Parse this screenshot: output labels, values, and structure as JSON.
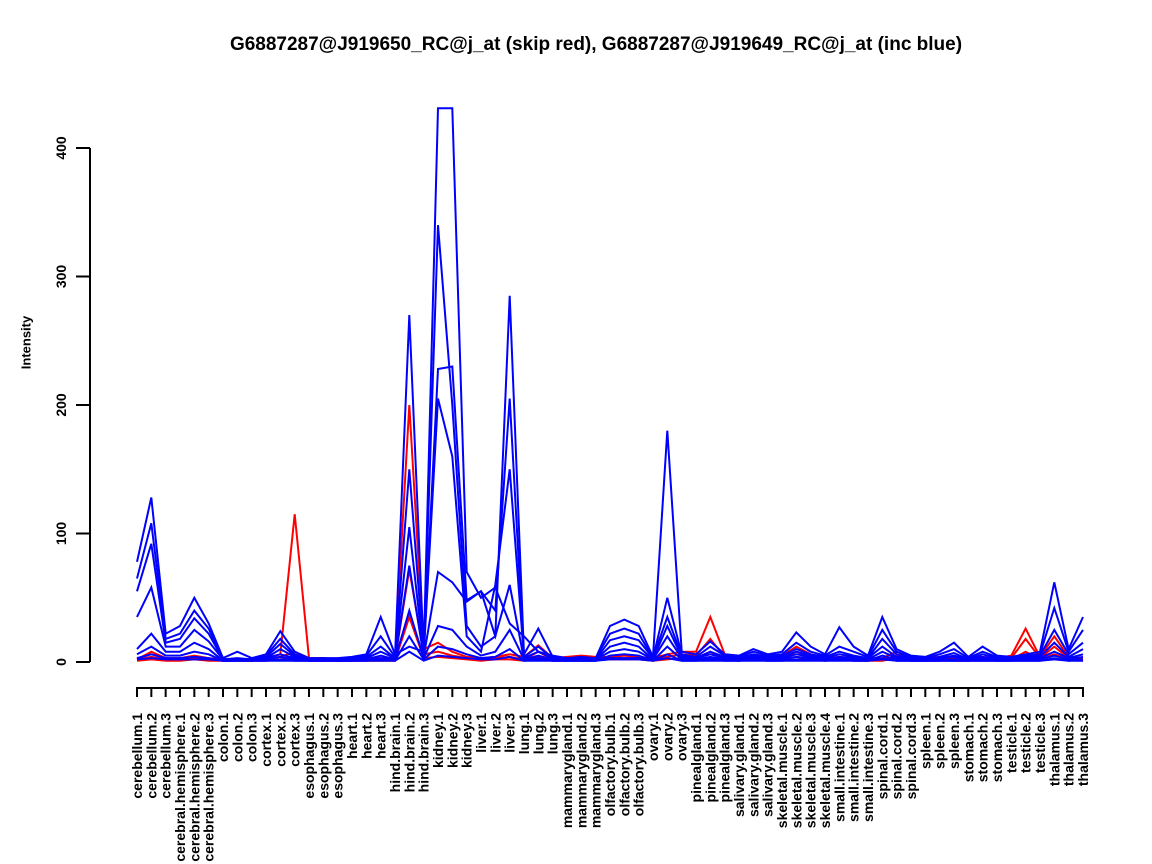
{
  "chart_data": {
    "type": "line",
    "title": "G6887287@J919650_RC@j_at (skip red), G6887287@J919649_RC@j_at (inc blue)",
    "xlabel": "",
    "ylabel": "Intensity",
    "y_ticks": [
      0,
      100,
      200,
      300,
      400
    ],
    "ylim": [
      0,
      435
    ],
    "grid": false,
    "legend_position": "none (legend encoded in title: skip=red, inc=blue)",
    "colors": {
      "skip_probe": "#ff0000",
      "inc_probe": "#0000ff",
      "axis": "#000000",
      "background": "#ffffff"
    },
    "categories": [
      "cerebellum.1",
      "cerebellum.2",
      "cerebellum.3",
      "cerebral.hemisphere.1",
      "cerebral.hemisphere.2",
      "cerebral.hemisphere.3",
      "colon.1",
      "colon.2",
      "colon.3",
      "cortex.1",
      "cortex.2",
      "cortex.3",
      "esophagus.1",
      "esophagus.2",
      "esophagus.3",
      "heart.1",
      "heart.2",
      "heart.3",
      "hind.brain.1",
      "hind.brain.2",
      "hind.brain.3",
      "kidney.1",
      "kidney.2",
      "kidney.3",
      "liver.1",
      "liver.2",
      "liver.3",
      "lung.1",
      "lung.2",
      "lung.3",
      "mammarygland.1",
      "mammarygland.2",
      "mammarygland.3",
      "olfactory.bulb.1",
      "olfactory.bulb.2",
      "olfactory.bulb.3",
      "ovary.1",
      "ovary.2",
      "ovary.3",
      "pinealgland.1",
      "pinealgland.2",
      "pinealgland.3",
      "salivary.gland.1",
      "salivary.gland.2",
      "salivary.gland.3",
      "skeletal.muscle.1",
      "skeletal.muscle.2",
      "skeletal.muscle.3",
      "skeletal.muscle.4",
      "small.intestine.1",
      "small.intestine.2",
      "small.intestine.3",
      "spinal.cord.1",
      "spinal.cord.2",
      "spinal.cord.3",
      "spleen.1",
      "spleen.2",
      "spleen.3",
      "stomach.1",
      "stomach.2",
      "stomach.3",
      "testicle.1",
      "testicle.2",
      "testicle.3",
      "thalamus.1",
      "thalamus.2",
      "thalamus.3"
    ],
    "series": [
      {
        "name": "G6887287@J919650_RC@j_at skip probe 1",
        "group": "skip",
        "color": "#ff0000",
        "values": [
          2,
          8,
          3,
          3,
          5,
          3,
          2,
          2,
          2,
          3,
          6,
          115,
          3,
          3,
          2,
          2,
          3,
          3,
          3,
          200,
          10,
          15,
          8,
          4,
          3,
          4,
          6,
          4,
          13,
          3,
          4,
          5,
          4,
          4,
          5,
          4,
          3,
          6,
          8,
          8,
          35,
          6,
          3,
          4,
          3,
          5,
          12,
          6,
          3,
          4,
          3,
          3,
          3,
          8,
          3,
          3,
          4,
          3,
          3,
          4,
          3,
          5,
          26,
          4,
          20,
          4,
          3
        ]
      },
      {
        "name": "G6887287@J919650_RC@j_at skip probe 2",
        "group": "skip",
        "color": "#ff0000",
        "values": [
          2,
          4,
          2,
          2,
          3,
          2,
          1,
          2,
          1,
          2,
          4,
          8,
          2,
          2,
          1,
          1,
          2,
          2,
          2,
          72,
          6,
          8,
          5,
          3,
          2,
          3,
          4,
          2,
          8,
          2,
          3,
          4,
          3,
          3,
          3,
          3,
          2,
          4,
          6,
          5,
          18,
          4,
          2,
          3,
          2,
          3,
          8,
          4,
          2,
          3,
          2,
          2,
          2,
          5,
          2,
          2,
          3,
          2,
          2,
          3,
          2,
          3,
          18,
          3,
          12,
          3,
          2
        ]
      },
      {
        "name": "G6887287@J919650_RC@j_at skip probe 3",
        "group": "skip",
        "color": "#ff0000",
        "values": [
          1,
          2,
          1,
          1,
          2,
          1,
          1,
          1,
          1,
          1,
          2,
          4,
          1,
          1,
          1,
          1,
          1,
          1,
          1,
          35,
          3,
          4,
          3,
          2,
          1,
          2,
          2,
          1,
          4,
          1,
          2,
          2,
          2,
          2,
          2,
          2,
          1,
          2,
          3,
          3,
          8,
          2,
          1,
          2,
          1,
          2,
          4,
          2,
          1,
          2,
          1,
          1,
          1,
          3,
          1,
          1,
          2,
          1,
          1,
          2,
          1,
          2,
          8,
          2,
          6,
          2,
          1
        ]
      },
      {
        "name": "G6887287@J919649_RC@j_at inc probe 1",
        "group": "inc",
        "color": "#0000ff",
        "values": [
          78,
          128,
          22,
          28,
          50,
          30,
          3,
          8,
          3,
          6,
          24,
          8,
          3,
          3,
          3,
          4,
          6,
          35,
          6,
          12,
          8,
          431,
          431,
          70,
          50,
          58,
          30,
          20,
          8,
          5,
          3,
          4,
          3,
          28,
          33,
          28,
          4,
          180,
          8,
          6,
          16,
          6,
          5,
          10,
          6,
          8,
          23,
          12,
          6,
          27,
          12,
          5,
          35,
          10,
          5,
          4,
          8,
          15,
          4,
          12,
          5,
          4,
          6,
          8,
          62,
          10,
          35
        ]
      },
      {
        "name": "G6887287@J919649_RC@j_at inc probe 2",
        "group": "inc",
        "color": "#0000ff",
        "values": [
          65,
          108,
          18,
          22,
          40,
          26,
          2,
          3,
          2,
          5,
          18,
          6,
          2,
          3,
          2,
          3,
          5,
          20,
          4,
          270,
          8,
          340,
          200,
          28,
          12,
          20,
          285,
          6,
          26,
          4,
          2,
          3,
          3,
          22,
          26,
          22,
          3,
          50,
          6,
          4,
          12,
          5,
          4,
          8,
          5,
          6,
          15,
          8,
          5,
          12,
          8,
          4,
          25,
          8,
          4,
          3,
          6,
          10,
          3,
          8,
          4,
          3,
          5,
          6,
          42,
          8,
          25
        ]
      },
      {
        "name": "G6887287@J919649_RC@j_at inc probe 3",
        "group": "inc",
        "color": "#0000ff",
        "values": [
          55,
          92,
          15,
          18,
          34,
          22,
          2,
          2,
          2,
          4,
          14,
          5,
          2,
          2,
          2,
          3,
          4,
          12,
          3,
          150,
          6,
          228,
          230,
          48,
          55,
          40,
          205,
          4,
          12,
          3,
          2,
          3,
          2,
          17,
          20,
          17,
          3,
          35,
          5,
          3,
          8,
          4,
          3,
          6,
          4,
          5,
          10,
          6,
          4,
          8,
          5,
          3,
          18,
          6,
          3,
          2,
          4,
          7,
          2,
          6,
          3,
          3,
          4,
          5,
          25,
          6,
          15
        ]
      },
      {
        "name": "G6887287@J919649_RC@j_at inc probe 4",
        "group": "inc",
        "color": "#0000ff",
        "values": [
          35,
          58,
          12,
          12,
          25,
          16,
          2,
          2,
          2,
          3,
          10,
          4,
          2,
          2,
          2,
          2,
          3,
          8,
          3,
          105,
          5,
          205,
          160,
          20,
          8,
          60,
          150,
          3,
          8,
          3,
          2,
          2,
          2,
          12,
          15,
          12,
          2,
          28,
          4,
          3,
          6,
          3,
          3,
          5,
          3,
          4,
          8,
          5,
          3,
          6,
          4,
          3,
          12,
          4,
          3,
          2,
          3,
          5,
          2,
          4,
          2,
          2,
          3,
          4,
          15,
          4,
          10
        ]
      },
      {
        "name": "G6887287@J919649_RC@j_at inc probe 5",
        "group": "inc",
        "color": "#0000ff",
        "values": [
          10,
          22,
          8,
          8,
          15,
          10,
          1,
          2,
          1,
          3,
          6,
          3,
          1,
          2,
          1,
          2,
          2,
          5,
          2,
          75,
          4,
          70,
          62,
          47,
          55,
          20,
          60,
          2,
          5,
          2,
          1,
          2,
          2,
          8,
          10,
          8,
          2,
          20,
          3,
          2,
          4,
          2,
          2,
          4,
          2,
          3,
          6,
          4,
          2,
          4,
          3,
          2,
          8,
          3,
          2,
          1,
          2,
          4,
          1,
          3,
          2,
          2,
          2,
          3,
          8,
          3,
          6
        ]
      },
      {
        "name": "G6887287@J919649_RC@j_at inc probe 6",
        "group": "inc",
        "color": "#0000ff",
        "values": [
          6,
          12,
          5,
          5,
          8,
          6,
          1,
          1,
          1,
          2,
          4,
          2,
          1,
          1,
          1,
          1,
          2,
          3,
          2,
          40,
          3,
          28,
          25,
          12,
          5,
          8,
          25,
          2,
          3,
          1,
          1,
          1,
          1,
          5,
          6,
          5,
          1,
          12,
          2,
          2,
          3,
          2,
          1,
          3,
          2,
          2,
          4,
          3,
          2,
          3,
          2,
          1,
          5,
          2,
          1,
          1,
          1,
          2,
          1,
          2,
          1,
          1,
          2,
          2,
          5,
          2,
          4
        ]
      },
      {
        "name": "G6887287@J919649_RC@j_at inc probe 7",
        "group": "inc",
        "color": "#0000ff",
        "values": [
          3,
          6,
          3,
          3,
          4,
          3,
          1,
          1,
          1,
          1,
          2,
          1,
          1,
          1,
          1,
          1,
          1,
          2,
          1,
          20,
          2,
          12,
          10,
          6,
          3,
          4,
          10,
          1,
          2,
          1,
          1,
          1,
          1,
          3,
          3,
          3,
          1,
          6,
          1,
          1,
          2,
          1,
          1,
          2,
          1,
          1,
          2,
          2,
          1,
          2,
          1,
          1,
          3,
          1,
          1,
          1,
          1,
          1,
          1,
          1,
          1,
          1,
          1,
          1,
          3,
          1,
          2
        ]
      },
      {
        "name": "G6887287@J919649_RC@j_at inc probe 8",
        "group": "inc",
        "color": "#0000ff",
        "values": [
          2,
          3,
          2,
          2,
          2,
          2,
          1,
          1,
          1,
          1,
          1,
          1,
          1,
          1,
          1,
          1,
          1,
          1,
          1,
          8,
          1,
          5,
          4,
          3,
          2,
          2,
          4,
          1,
          1,
          1,
          1,
          1,
          1,
          2,
          2,
          2,
          1,
          3,
          1,
          1,
          1,
          1,
          1,
          1,
          1,
          1,
          1,
          1,
          1,
          1,
          1,
          1,
          2,
          1,
          1,
          1,
          1,
          1,
          1,
          1,
          1,
          1,
          1,
          1,
          2,
          1,
          1
        ]
      }
    ]
  }
}
